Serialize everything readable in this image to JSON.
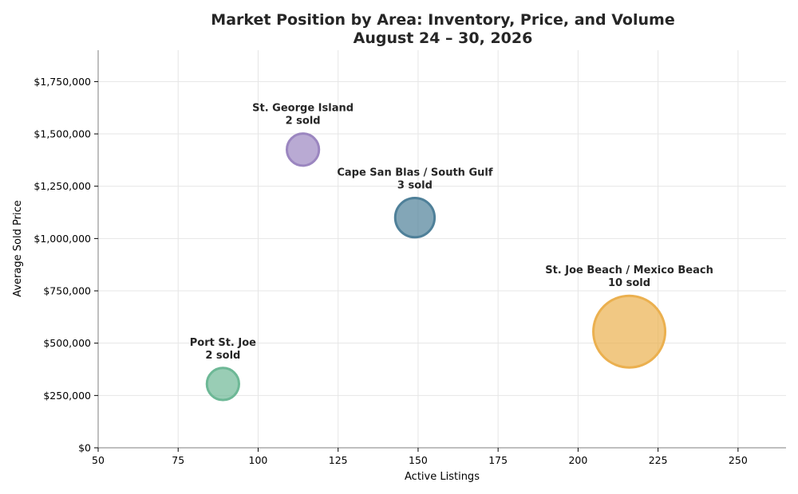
{
  "chart_data": {
    "type": "scatter",
    "title": "Market Position by Area: Inventory, Price, and Volume",
    "subtitle": "August 24 – 30, 2026",
    "xlabel": "Active Listings",
    "ylabel": "Average Sold Price",
    "xlim": [
      50,
      265
    ],
    "ylim": [
      0,
      1900000
    ],
    "xticks": [
      50,
      75,
      100,
      125,
      150,
      175,
      200,
      225,
      250
    ],
    "xtick_labels": [
      "50",
      "75",
      "100",
      "125",
      "150",
      "175",
      "200",
      "225",
      "250"
    ],
    "yticks": [
      0,
      250000,
      500000,
      750000,
      1000000,
      1250000,
      1500000,
      1750000
    ],
    "ytick_labels": [
      "$0",
      "$250,000",
      "$500,000",
      "$750,000",
      "$1,000,000",
      "$1,250,000",
      "$1,500,000",
      "$1,750,000"
    ],
    "grid": true,
    "points": [
      {
        "area": "Port St. Joe",
        "sold_label": "2 sold",
        "active_listings": 89,
        "avg_sold_price": 305000,
        "sold": 2,
        "color": "#6db896"
      },
      {
        "area": "St. George Island",
        "sold_label": "2 sold",
        "active_listings": 114,
        "avg_sold_price": 1425000,
        "sold": 2,
        "color": "#9b86c0"
      },
      {
        "area": "Cape San Blas / South Gulf",
        "sold_label": "3 sold",
        "active_listings": 149,
        "avg_sold_price": 1100000,
        "sold": 3,
        "color": "#4f8099"
      },
      {
        "area": "St. Joe Beach / Mexico Beach",
        "sold_label": "10 sold",
        "active_listings": 216,
        "avg_sold_price": 555000,
        "sold": 10,
        "color": "#ebb04f"
      }
    ]
  }
}
